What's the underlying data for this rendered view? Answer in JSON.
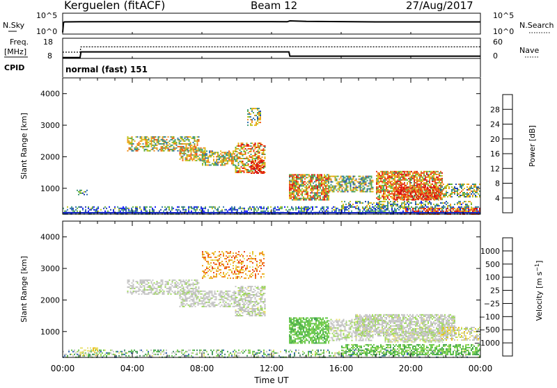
{
  "header": {
    "station": "Kerguelen (fitACF)",
    "beam": "Beam 12",
    "date": "27/Aug/2017"
  },
  "nsky_panel": {
    "left_label": "N.Sky",
    "right_label": "N.Search",
    "left_ticks": [
      "10^5",
      "10^0"
    ],
    "right_ticks": [
      "10^5",
      "10^0"
    ]
  },
  "freq_panel": {
    "left_label_1": "Freq.",
    "left_label_2": "[MHz]",
    "right_label": "Nave",
    "left_ticks": [
      "18",
      "8"
    ],
    "right_ticks": [
      "60",
      "0"
    ]
  },
  "cpid": {
    "label": "CPID",
    "mode": "normal (fast) 151"
  },
  "chart_data": [
    {
      "type": "line",
      "name": "nsky-nsearch",
      "x_unit": "hours UT",
      "series": [
        {
          "name": "N.Sky",
          "x": [
            0,
            0.05,
            0.1,
            1,
            4,
            8,
            12,
            12.9,
            13.05,
            14,
            18,
            22,
            24
          ],
          "y": [
            0.3,
            3.6,
            3.75,
            3.8,
            3.85,
            3.85,
            3.85,
            3.8,
            4.1,
            3.9,
            3.75,
            3.75,
            3.75
          ]
        }
      ]
    },
    {
      "type": "line",
      "name": "freq-nave",
      "x_unit": "hours UT",
      "series": [
        {
          "name": "Freq.",
          "x": [
            0,
            1,
            1.05,
            13,
            13.05,
            24
          ],
          "y": [
            8.1,
            8.1,
            11.5,
            11.5,
            8.9,
            8.9
          ],
          "style": "solid"
        },
        {
          "name": "Nave",
          "x": [
            0,
            1,
            1.05,
            13,
            13.05,
            24
          ],
          "y": [
            20,
            20,
            39,
            39,
            39,
            39
          ],
          "style": "dotted"
        }
      ]
    },
    {
      "type": "heatmap",
      "name": "power-panel",
      "ylabel": "Slant Range [km]",
      "y_ticks": [
        1000,
        2000,
        3000,
        4000
      ],
      "xlim": [
        0,
        24
      ],
      "ylim": [
        180,
        4500
      ],
      "colorbar": {
        "label": "Power [dB]",
        "ticks": [
          4,
          8,
          12,
          16,
          20,
          24,
          28
        ],
        "colors": [
          "#0a12ff",
          "#1f3fa8",
          "#2e6fb0",
          "#3f9a7a",
          "#5fb03a",
          "#bfc21e",
          "#e8b815",
          "#f09020",
          "#f06018",
          "#e83018",
          "#d81010"
        ]
      },
      "regions": [
        {
          "x": [
            0,
            24
          ],
          "y": [
            180,
            430
          ],
          "level": 0.25,
          "density": 0.45,
          "noise": 0.25
        },
        {
          "x": [
            3.7,
            7.8
          ],
          "y": [
            2200,
            2650
          ],
          "level": 0.5,
          "density": 0.55,
          "noise": 0.3
        },
        {
          "x": [
            6.7,
            8.2
          ],
          "y": [
            1900,
            2300
          ],
          "level": 0.55,
          "density": 0.65,
          "noise": 0.3
        },
        {
          "x": [
            8.0,
            9.9
          ],
          "y": [
            1750,
            2200
          ],
          "level": 0.5,
          "density": 0.65,
          "noise": 0.3
        },
        {
          "x": [
            9.9,
            11.6
          ],
          "y": [
            1500,
            2450
          ],
          "level": 0.62,
          "density": 0.55,
          "noise": 0.35
        },
        {
          "x": [
            10.8,
            11.6
          ],
          "y": [
            1500,
            1900
          ],
          "level": 0.9,
          "density": 0.65,
          "noise": 0.2
        },
        {
          "x": [
            10.6,
            11.4
          ],
          "y": [
            3000,
            3550
          ],
          "level": 0.45,
          "density": 0.4,
          "noise": 0.3
        },
        {
          "x": [
            13.0,
            15.3
          ],
          "y": [
            650,
            1450
          ],
          "level": 0.6,
          "density": 0.75,
          "noise": 0.35
        },
        {
          "x": [
            15.3,
            17.8
          ],
          "y": [
            900,
            1400
          ],
          "level": 0.45,
          "density": 0.6,
          "noise": 0.3
        },
        {
          "x": [
            18.0,
            21.8
          ],
          "y": [
            650,
            1550
          ],
          "level": 0.65,
          "density": 0.75,
          "noise": 0.35
        },
        {
          "x": [
            19.0,
            21.6
          ],
          "y": [
            650,
            1050
          ],
          "level": 0.85,
          "density": 0.6,
          "noise": 0.2
        },
        {
          "x": [
            21.6,
            24.0
          ],
          "y": [
            750,
            1150
          ],
          "level": 0.45,
          "density": 0.55,
          "noise": 0.3
        },
        {
          "x": [
            16.0,
            23.5
          ],
          "y": [
            350,
            600
          ],
          "level": 0.35,
          "density": 0.4,
          "noise": 0.3
        },
        {
          "x": [
            19.6,
            24.0
          ],
          "y": [
            200,
            380
          ],
          "level": 0.8,
          "density": 0.5,
          "noise": 0.2
        },
        {
          "x": [
            0.8,
            1.4
          ],
          "y": [
            800,
            1000
          ],
          "level": 0.3,
          "density": 0.4,
          "noise": 0.2
        }
      ]
    },
    {
      "type": "heatmap",
      "name": "velocity-panel",
      "ylabel": "Slant Range [km]",
      "y_ticks": [
        1000,
        2000,
        3000,
        4000
      ],
      "xlim": [
        0,
        24
      ],
      "ylim": [
        180,
        4500
      ],
      "colorbar": {
        "label": "Velocity [m s^-1]",
        "ticks": [
          "1000",
          "500",
          "100",
          "25",
          "-25",
          "-100",
          "-500",
          "-1000"
        ],
        "colors": [
          "#1030c0",
          "#2a5fb0",
          "#3f8a60",
          "#3fa24a",
          "#66c84a",
          "#9ed95a",
          "#c8c8c8",
          "#c0c0c0",
          "#e8e070",
          "#e8c020",
          "#f0a020",
          "#f07018",
          "#e84018",
          "#d81010"
        ]
      },
      "regions": [
        {
          "x": [
            0,
            24
          ],
          "y": [
            180,
            430
          ],
          "level": 0.35,
          "density": 0.35,
          "noise": 0.25
        },
        {
          "x": [
            3.7,
            7.8
          ],
          "y": [
            2200,
            2650
          ],
          "level": 0.48,
          "density": 0.5,
          "noise": 0.08
        },
        {
          "x": [
            6.7,
            9.9
          ],
          "y": [
            1800,
            2300
          ],
          "level": 0.48,
          "density": 0.55,
          "noise": 0.08
        },
        {
          "x": [
            9.9,
            11.6
          ],
          "y": [
            1500,
            2450
          ],
          "level": 0.48,
          "density": 0.55,
          "noise": 0.1
        },
        {
          "x": [
            8.0,
            11.6
          ],
          "y": [
            2700,
            3550
          ],
          "level": 0.75,
          "density": 0.3,
          "noise": 0.15
        },
        {
          "x": [
            13.0,
            15.3
          ],
          "y": [
            650,
            1450
          ],
          "level": 0.32,
          "density": 0.7,
          "noise": 0.05
        },
        {
          "x": [
            15.3,
            17.8
          ],
          "y": [
            700,
            1400
          ],
          "level": 0.48,
          "density": 0.55,
          "noise": 0.1
        },
        {
          "x": [
            16.8,
            22.5
          ],
          "y": [
            850,
            1550
          ],
          "level": 0.48,
          "density": 0.7,
          "noise": 0.1
        },
        {
          "x": [
            18.5,
            21.8
          ],
          "y": [
            650,
            1000
          ],
          "level": 0.48,
          "density": 0.6,
          "noise": 0.12
        },
        {
          "x": [
            21.6,
            24.0
          ],
          "y": [
            750,
            1150
          ],
          "level": 0.55,
          "density": 0.5,
          "noise": 0.15
        },
        {
          "x": [
            16.0,
            24.0
          ],
          "y": [
            250,
            600
          ],
          "level": 0.32,
          "density": 0.55,
          "noise": 0.08
        },
        {
          "x": [
            1.0,
            2.0
          ],
          "y": [
            250,
            500
          ],
          "level": 0.62,
          "density": 0.35,
          "noise": 0.08
        }
      ]
    }
  ],
  "x_axis": {
    "ticks": [
      "00:00",
      "04:00",
      "08:00",
      "12:00",
      "16:00",
      "20:00",
      "00:00"
    ],
    "label": "Time UT"
  }
}
